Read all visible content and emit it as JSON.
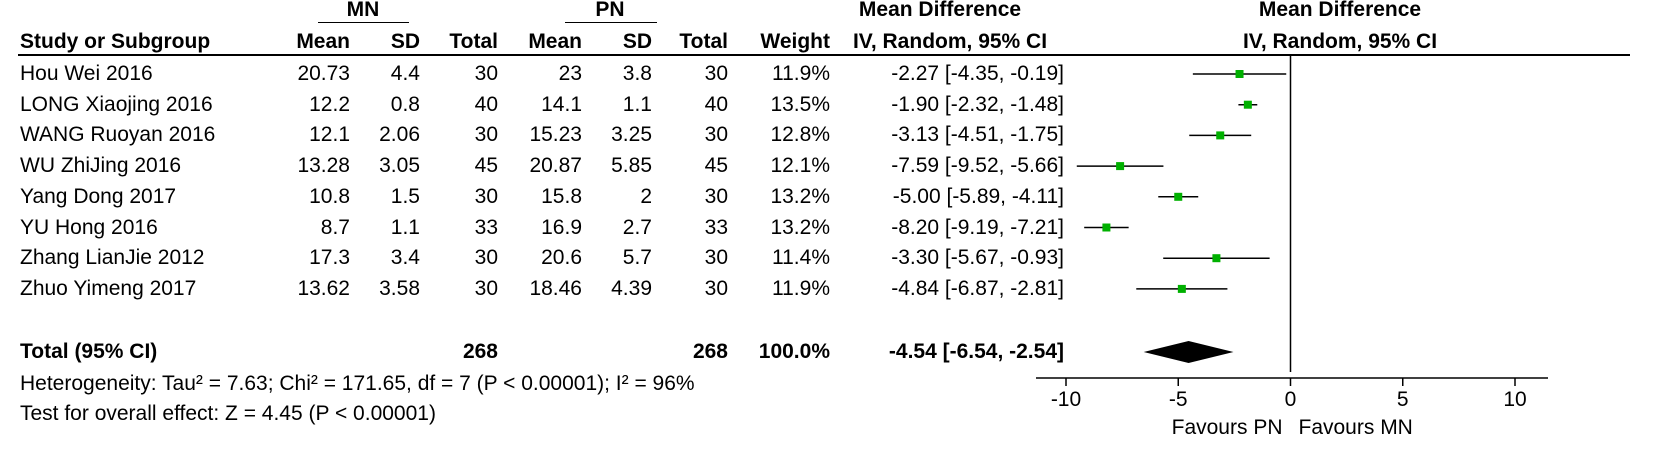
{
  "headers": {
    "group1": "MN",
    "group2": "PN",
    "md_table": "Mean Difference",
    "md_plot": "Mean Difference",
    "study": "Study or Subgroup",
    "mean1": "Mean",
    "sd1": "SD",
    "total1": "Total",
    "mean2": "Mean",
    "sd2": "SD",
    "total2": "Total",
    "weight": "Weight",
    "md_method_table": "IV, Random, 95% CI",
    "md_method_plot": "IV, Random, 95% CI"
  },
  "studies": [
    {
      "name": "Hou Wei 2016",
      "mean1": "20.73",
      "sd1": "4.4",
      "total1": "30",
      "mean2": "23",
      "sd2": "3.8",
      "total2": "30",
      "weight": "11.9%",
      "ci": "-2.27 [-4.35, -0.19]"
    },
    {
      "name": "LONG Xiaojing 2016",
      "mean1": "12.2",
      "sd1": "0.8",
      "total1": "40",
      "mean2": "14.1",
      "sd2": "1.1",
      "total2": "40",
      "weight": "13.5%",
      "ci": "-1.90 [-2.32, -1.48]"
    },
    {
      "name": "WANG Ruoyan 2016",
      "mean1": "12.1",
      "sd1": "2.06",
      "total1": "30",
      "mean2": "15.23",
      "sd2": "3.25",
      "total2": "30",
      "weight": "12.8%",
      "ci": "-3.13 [-4.51, -1.75]"
    },
    {
      "name": "WU ZhiJing 2016",
      "mean1": "13.28",
      "sd1": "3.05",
      "total1": "45",
      "mean2": "20.87",
      "sd2": "5.85",
      "total2": "45",
      "weight": "12.1%",
      "ci": "-7.59 [-9.52, -5.66]"
    },
    {
      "name": "Yang Dong 2017",
      "mean1": "10.8",
      "sd1": "1.5",
      "total1": "30",
      "mean2": "15.8",
      "sd2": "2",
      "total2": "30",
      "weight": "13.2%",
      "ci": "-5.00 [-5.89, -4.11]"
    },
    {
      "name": "YU Hong 2016",
      "mean1": "8.7",
      "sd1": "1.1",
      "total1": "33",
      "mean2": "16.9",
      "sd2": "2.7",
      "total2": "33",
      "weight": "13.2%",
      "ci": "-8.20 [-9.19, -7.21]"
    },
    {
      "name": "Zhang LianJie 2012",
      "mean1": "17.3",
      "sd1": "3.4",
      "total1": "30",
      "mean2": "20.6",
      "sd2": "5.7",
      "total2": "30",
      "weight": "11.4%",
      "ci": "-3.30 [-5.67, -0.93]"
    },
    {
      "name": "Zhuo Yimeng 2017",
      "mean1": "13.62",
      "sd1": "3.58",
      "total1": "30",
      "mean2": "18.46",
      "sd2": "4.39",
      "total2": "30",
      "weight": "11.9%",
      "ci": "-4.84 [-6.87, -2.81]"
    }
  ],
  "total": {
    "label": "Total (95% CI)",
    "total1": "268",
    "total2": "268",
    "weight": "100.0%",
    "ci": "-4.54 [-6.54, -2.54]"
  },
  "heterogeneity": "Heterogeneity: Tau² = 7.63; Chi² = 171.65, df = 7 (P < 0.00001); I² = 96%",
  "overall_effect": "Test for overall effect: Z = 4.45 (P < 0.00001)",
  "axis": {
    "favours_left": "Favours PN",
    "favours_right": "Favours MN"
  },
  "colors": {
    "marker": "#00b000",
    "line": "#000000",
    "diamond": "#000000"
  },
  "chart_data": {
    "type": "forest",
    "title": "Mean Difference",
    "subtitle": "IV, Random, 95% CI",
    "xlim": [
      -10,
      10
    ],
    "xticks": [
      -10,
      -5,
      0,
      5,
      10
    ],
    "studies": [
      {
        "name": "Hou Wei 2016",
        "md": -2.27,
        "lo": -4.35,
        "hi": -0.19,
        "weight": 11.9
      },
      {
        "name": "LONG Xiaojing 2016",
        "md": -1.9,
        "lo": -2.32,
        "hi": -1.48,
        "weight": 13.5
      },
      {
        "name": "WANG Ruoyan 2016",
        "md": -3.13,
        "lo": -4.51,
        "hi": -1.75,
        "weight": 12.8
      },
      {
        "name": "WU ZhiJing 2016",
        "md": -7.59,
        "lo": -9.52,
        "hi": -5.66,
        "weight": 12.1
      },
      {
        "name": "Yang Dong 2017",
        "md": -5.0,
        "lo": -5.89,
        "hi": -4.11,
        "weight": 13.2
      },
      {
        "name": "YU Hong 2016",
        "md": -8.2,
        "lo": -9.19,
        "hi": -7.21,
        "weight": 13.2
      },
      {
        "name": "Zhang LianJie 2012",
        "md": -3.3,
        "lo": -5.67,
        "hi": -0.93,
        "weight": 11.4
      },
      {
        "name": "Zhuo Yimeng 2017",
        "md": -4.84,
        "lo": -6.87,
        "hi": -2.81,
        "weight": 11.9
      }
    ],
    "pooled": {
      "md": -4.54,
      "lo": -6.54,
      "hi": -2.54
    },
    "xlabel_left": "Favours PN",
    "xlabel_right": "Favours MN"
  }
}
